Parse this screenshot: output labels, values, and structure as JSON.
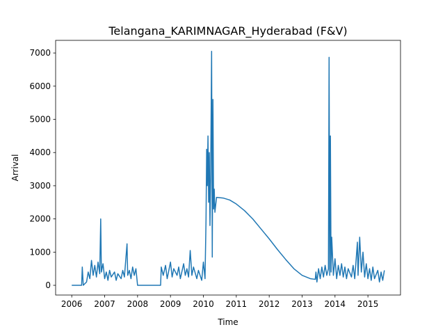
{
  "chart_data": {
    "type": "line",
    "title": "Telangana_KARIMNAGAR_Hyderabad (F&V)",
    "x_label": "Time",
    "y_label": "Arrival",
    "x": [
      2006.0,
      2006.3,
      2006.32,
      2006.35,
      2006.45,
      2006.5,
      2006.55,
      2006.6,
      2006.65,
      2006.7,
      2006.75,
      2006.8,
      2006.85,
      2006.88,
      2006.9,
      2006.95,
      2007.0,
      2007.05,
      2007.1,
      2007.15,
      2007.2,
      2007.3,
      2007.35,
      2007.4,
      2007.5,
      2007.55,
      2007.6,
      2007.68,
      2007.7,
      2007.75,
      2007.8,
      2007.85,
      2007.9,
      2007.95,
      2008.0,
      2008.7,
      2008.72,
      2008.78,
      2008.85,
      2008.9,
      2009.0,
      2009.05,
      2009.1,
      2009.2,
      2009.25,
      2009.3,
      2009.4,
      2009.45,
      2009.5,
      2009.55,
      2009.6,
      2009.65,
      2009.7,
      2009.8,
      2009.85,
      2009.95,
      2010.0,
      2010.05,
      2010.08,
      2010.1,
      2010.12,
      2010.14,
      2010.16,
      2010.18,
      2010.2,
      2010.22,
      2010.25,
      2010.27,
      2010.29,
      2010.31,
      2010.33,
      2010.35,
      2010.4,
      2010.6,
      2010.8,
      2011.0,
      2011.25,
      2011.5,
      2011.75,
      2012.0,
      2012.25,
      2012.5,
      2012.75,
      2013.0,
      2013.25,
      2013.4,
      2013.42,
      2013.45,
      2013.5,
      2013.55,
      2013.6,
      2013.65,
      2013.7,
      2013.75,
      2013.8,
      2013.82,
      2013.84,
      2013.86,
      2013.88,
      2013.9,
      2013.95,
      2014.0,
      2014.05,
      2014.1,
      2014.15,
      2014.2,
      2014.25,
      2014.3,
      2014.35,
      2014.4,
      2014.5,
      2014.55,
      2014.6,
      2014.68,
      2014.7,
      2014.75,
      2014.8,
      2014.85,
      2014.9,
      2014.95,
      2015.0,
      2015.05,
      2015.1,
      2015.15,
      2015.2,
      2015.3,
      2015.35,
      2015.4,
      2015.45,
      2015.5
    ],
    "values": [
      0,
      0,
      550,
      0,
      100,
      400,
      200,
      750,
      300,
      600,
      250,
      700,
      350,
      2000,
      400,
      650,
      200,
      400,
      150,
      450,
      250,
      400,
      150,
      350,
      200,
      450,
      250,
      1250,
      300,
      450,
      200,
      550,
      300,
      500,
      0,
      0,
      550,
      300,
      600,
      200,
      700,
      250,
      500,
      300,
      550,
      200,
      650,
      300,
      500,
      250,
      1050,
      300,
      550,
      200,
      450,
      150,
      700,
      200,
      1950,
      4100,
      3000,
      4500,
      2500,
      4000,
      1800,
      3200,
      7050,
      850,
      5600,
      2300,
      2900,
      2200,
      2650,
      2630,
      2570,
      2450,
      2250,
      2000,
      1700,
      1400,
      1080,
      780,
      500,
      300,
      200,
      180,
      400,
      100,
      500,
      200,
      550,
      250,
      600,
      300,
      500,
      6870,
      300,
      4500,
      400,
      1450,
      300,
      800,
      200,
      600,
      300,
      650,
      250,
      550,
      200,
      500,
      250,
      600,
      200,
      1300,
      300,
      1450,
      400,
      1000,
      250,
      650,
      200,
      500,
      150,
      550,
      200,
      450,
      100,
      400,
      150,
      450
    ],
    "color": "#1f77b4",
    "xlim": [
      2005.51,
      2015.99
    ],
    "xticks": [
      2006,
      2007,
      2008,
      2009,
      2010,
      2011,
      2012,
      2013,
      2014,
      2015
    ],
    "ylim": [
      -293,
      7380
    ],
    "yticks": [
      0,
      1000,
      2000,
      3000,
      4000,
      5000,
      6000,
      7000
    ],
    "grid": false
  }
}
